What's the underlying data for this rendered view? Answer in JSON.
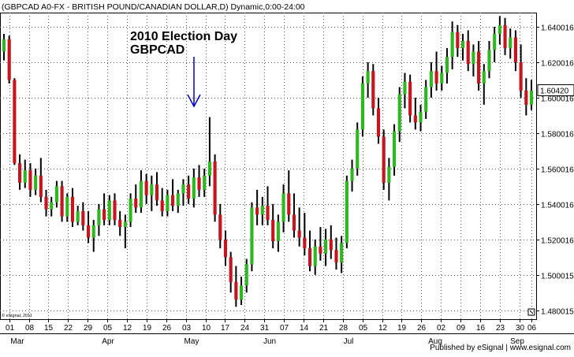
{
  "chart_data": {
    "type": "candlestick",
    "title": "(GBPCAD A0-FX - BRITISH POUND/CANADIAN DOLLAR,D) Dynamic,0:00-24:00",
    "annotation": {
      "text_line1": "2010 Election Day",
      "text_line2": "GBPCAD"
    },
    "last_price_label": "1.60420",
    "last_price": 1.6042,
    "y_range": [
      1.475,
      1.648
    ],
    "y_ticks": [
      "1.640016",
      "1.620016",
      "1.600016",
      "1.580016",
      "1.560016",
      "1.540016",
      "1.520016",
      "1.500015",
      "1.480015"
    ],
    "y_tick_values": [
      1.640016,
      1.620016,
      1.600016,
      1.580016,
      1.560016,
      1.540016,
      1.520016,
      1.500015,
      1.480015
    ],
    "x_day_labels": [
      "01",
      "08",
      "15",
      "22",
      "29",
      "05",
      "12",
      "19",
      "26",
      "03",
      "10",
      "17",
      "24",
      "31",
      "07",
      "14",
      "21",
      "28",
      "05",
      "12",
      "19",
      "26",
      "02",
      "09",
      "16",
      "23",
      "30",
      "06"
    ],
    "x_month_labels": [
      "Mar",
      "Apr",
      "May",
      "Jun",
      "Jul",
      "Aug",
      "Sep"
    ],
    "copyright": "© eSignal, 2011",
    "grid": true,
    "candles": [
      {
        "o": 1.626,
        "h": 1.636,
        "l": 1.621,
        "c": 1.633
      },
      {
        "o": 1.633,
        "h": 1.635,
        "l": 1.608,
        "c": 1.61
      },
      {
        "o": 1.61,
        "h": 1.611,
        "l": 1.562,
        "c": 1.563
      },
      {
        "o": 1.563,
        "h": 1.568,
        "l": 1.548,
        "c": 1.552
      },
      {
        "o": 1.552,
        "h": 1.565,
        "l": 1.549,
        "c": 1.559
      },
      {
        "o": 1.559,
        "h": 1.563,
        "l": 1.544,
        "c": 1.548
      },
      {
        "o": 1.548,
        "h": 1.56,
        "l": 1.545,
        "c": 1.556
      },
      {
        "o": 1.556,
        "h": 1.566,
        "l": 1.541,
        "c": 1.544
      },
      {
        "o": 1.544,
        "h": 1.548,
        "l": 1.533,
        "c": 1.537
      },
      {
        "o": 1.537,
        "h": 1.544,
        "l": 1.533,
        "c": 1.541
      },
      {
        "o": 1.541,
        "h": 1.553,
        "l": 1.538,
        "c": 1.55
      },
      {
        "o": 1.55,
        "h": 1.553,
        "l": 1.53,
        "c": 1.533
      },
      {
        "o": 1.533,
        "h": 1.546,
        "l": 1.53,
        "c": 1.544
      },
      {
        "o": 1.544,
        "h": 1.549,
        "l": 1.527,
        "c": 1.53
      },
      {
        "o": 1.53,
        "h": 1.539,
        "l": 1.528,
        "c": 1.536
      },
      {
        "o": 1.536,
        "h": 1.541,
        "l": 1.525,
        "c": 1.528
      },
      {
        "o": 1.528,
        "h": 1.536,
        "l": 1.518,
        "c": 1.521
      },
      {
        "o": 1.521,
        "h": 1.531,
        "l": 1.513,
        "c": 1.528
      },
      {
        "o": 1.528,
        "h": 1.54,
        "l": 1.522,
        "c": 1.537
      },
      {
        "o": 1.537,
        "h": 1.546,
        "l": 1.528,
        "c": 1.531
      },
      {
        "o": 1.531,
        "h": 1.545,
        "l": 1.528,
        "c": 1.542
      },
      {
        "o": 1.542,
        "h": 1.546,
        "l": 1.528,
        "c": 1.531
      },
      {
        "o": 1.531,
        "h": 1.536,
        "l": 1.522,
        "c": 1.527
      },
      {
        "o": 1.527,
        "h": 1.534,
        "l": 1.515,
        "c": 1.53
      },
      {
        "o": 1.53,
        "h": 1.546,
        "l": 1.527,
        "c": 1.543
      },
      {
        "o": 1.543,
        "h": 1.551,
        "l": 1.535,
        "c": 1.538
      },
      {
        "o": 1.538,
        "h": 1.559,
        "l": 1.535,
        "c": 1.553
      },
      {
        "o": 1.553,
        "h": 1.557,
        "l": 1.54,
        "c": 1.545
      },
      {
        "o": 1.545,
        "h": 1.556,
        "l": 1.536,
        "c": 1.551
      },
      {
        "o": 1.551,
        "h": 1.558,
        "l": 1.539,
        "c": 1.542
      },
      {
        "o": 1.542,
        "h": 1.549,
        "l": 1.533,
        "c": 1.536
      },
      {
        "o": 1.536,
        "h": 1.548,
        "l": 1.533,
        "c": 1.545
      },
      {
        "o": 1.545,
        "h": 1.554,
        "l": 1.536,
        "c": 1.539
      },
      {
        "o": 1.539,
        "h": 1.548,
        "l": 1.535,
        "c": 1.546
      },
      {
        "o": 1.546,
        "h": 1.554,
        "l": 1.539,
        "c": 1.551
      },
      {
        "o": 1.551,
        "h": 1.556,
        "l": 1.54,
        "c": 1.543
      },
      {
        "o": 1.543,
        "h": 1.56,
        "l": 1.538,
        "c": 1.555
      },
      {
        "o": 1.555,
        "h": 1.562,
        "l": 1.544,
        "c": 1.548
      },
      {
        "o": 1.548,
        "h": 1.56,
        "l": 1.544,
        "c": 1.556
      },
      {
        "o": 1.556,
        "h": 1.589,
        "l": 1.55,
        "c": 1.564
      },
      {
        "o": 1.564,
        "h": 1.568,
        "l": 1.53,
        "c": 1.534
      },
      {
        "o": 1.534,
        "h": 1.54,
        "l": 1.515,
        "c": 1.52
      },
      {
        "o": 1.52,
        "h": 1.525,
        "l": 1.505,
        "c": 1.51
      },
      {
        "o": 1.51,
        "h": 1.513,
        "l": 1.49,
        "c": 1.496
      },
      {
        "o": 1.496,
        "h": 1.505,
        "l": 1.482,
        "c": 1.486
      },
      {
        "o": 1.486,
        "h": 1.499,
        "l": 1.483,
        "c": 1.494
      },
      {
        "o": 1.494,
        "h": 1.509,
        "l": 1.49,
        "c": 1.506
      },
      {
        "o": 1.506,
        "h": 1.541,
        "l": 1.502,
        "c": 1.538
      },
      {
        "o": 1.538,
        "h": 1.548,
        "l": 1.528,
        "c": 1.534
      },
      {
        "o": 1.534,
        "h": 1.544,
        "l": 1.528,
        "c": 1.539
      },
      {
        "o": 1.539,
        "h": 1.55,
        "l": 1.528,
        "c": 1.531
      },
      {
        "o": 1.531,
        "h": 1.54,
        "l": 1.515,
        "c": 1.519
      },
      {
        "o": 1.519,
        "h": 1.534,
        "l": 1.513,
        "c": 1.53
      },
      {
        "o": 1.53,
        "h": 1.551,
        "l": 1.524,
        "c": 1.546
      },
      {
        "o": 1.546,
        "h": 1.559,
        "l": 1.53,
        "c": 1.534
      },
      {
        "o": 1.534,
        "h": 1.546,
        "l": 1.521,
        "c": 1.525
      },
      {
        "o": 1.525,
        "h": 1.538,
        "l": 1.516,
        "c": 1.521
      },
      {
        "o": 1.521,
        "h": 1.535,
        "l": 1.511,
        "c": 1.515
      },
      {
        "o": 1.515,
        "h": 1.525,
        "l": 1.502,
        "c": 1.505
      },
      {
        "o": 1.505,
        "h": 1.52,
        "l": 1.5,
        "c": 1.516
      },
      {
        "o": 1.516,
        "h": 1.527,
        "l": 1.508,
        "c": 1.512
      },
      {
        "o": 1.512,
        "h": 1.526,
        "l": 1.505,
        "c": 1.52
      },
      {
        "o": 1.52,
        "h": 1.528,
        "l": 1.509,
        "c": 1.514
      },
      {
        "o": 1.514,
        "h": 1.521,
        "l": 1.503,
        "c": 1.507
      },
      {
        "o": 1.507,
        "h": 1.522,
        "l": 1.501,
        "c": 1.518
      },
      {
        "o": 1.518,
        "h": 1.556,
        "l": 1.515,
        "c": 1.553
      },
      {
        "o": 1.553,
        "h": 1.565,
        "l": 1.547,
        "c": 1.56
      },
      {
        "o": 1.56,
        "h": 1.586,
        "l": 1.556,
        "c": 1.582
      },
      {
        "o": 1.582,
        "h": 1.612,
        "l": 1.578,
        "c": 1.608
      },
      {
        "o": 1.608,
        "h": 1.62,
        "l": 1.6,
        "c": 1.615
      },
      {
        "o": 1.615,
        "h": 1.619,
        "l": 1.59,
        "c": 1.594
      },
      {
        "o": 1.594,
        "h": 1.6,
        "l": 1.574,
        "c": 1.578
      },
      {
        "o": 1.578,
        "h": 1.582,
        "l": 1.548,
        "c": 1.552
      },
      {
        "o": 1.552,
        "h": 1.566,
        "l": 1.542,
        "c": 1.561
      },
      {
        "o": 1.561,
        "h": 1.585,
        "l": 1.556,
        "c": 1.581
      },
      {
        "o": 1.581,
        "h": 1.606,
        "l": 1.575,
        "c": 1.602
      },
      {
        "o": 1.602,
        "h": 1.614,
        "l": 1.594,
        "c": 1.609
      },
      {
        "o": 1.609,
        "h": 1.613,
        "l": 1.586,
        "c": 1.59
      },
      {
        "o": 1.59,
        "h": 1.6,
        "l": 1.582,
        "c": 1.586
      },
      {
        "o": 1.586,
        "h": 1.596,
        "l": 1.581,
        "c": 1.592
      },
      {
        "o": 1.592,
        "h": 1.61,
        "l": 1.588,
        "c": 1.606
      },
      {
        "o": 1.606,
        "h": 1.62,
        "l": 1.6,
        "c": 1.615
      },
      {
        "o": 1.615,
        "h": 1.626,
        "l": 1.604,
        "c": 1.608
      },
      {
        "o": 1.608,
        "h": 1.618,
        "l": 1.604,
        "c": 1.614
      },
      {
        "o": 1.614,
        "h": 1.628,
        "l": 1.608,
        "c": 1.623
      },
      {
        "o": 1.623,
        "h": 1.643,
        "l": 1.616,
        "c": 1.637
      },
      {
        "o": 1.637,
        "h": 1.641,
        "l": 1.623,
        "c": 1.628
      },
      {
        "o": 1.628,
        "h": 1.636,
        "l": 1.621,
        "c": 1.632
      },
      {
        "o": 1.632,
        "h": 1.638,
        "l": 1.615,
        "c": 1.619
      },
      {
        "o": 1.619,
        "h": 1.63,
        "l": 1.612,
        "c": 1.626
      },
      {
        "o": 1.626,
        "h": 1.632,
        "l": 1.604,
        "c": 1.608
      },
      {
        "o": 1.608,
        "h": 1.619,
        "l": 1.596,
        "c": 1.615
      },
      {
        "o": 1.615,
        "h": 1.632,
        "l": 1.611,
        "c": 1.627
      },
      {
        "o": 1.627,
        "h": 1.64,
        "l": 1.62,
        "c": 1.636
      },
      {
        "o": 1.636,
        "h": 1.646,
        "l": 1.63,
        "c": 1.641
      },
      {
        "o": 1.641,
        "h": 1.645,
        "l": 1.624,
        "c": 1.628
      },
      {
        "o": 1.628,
        "h": 1.639,
        "l": 1.622,
        "c": 1.634
      },
      {
        "o": 1.634,
        "h": 1.638,
        "l": 1.615,
        "c": 1.62
      },
      {
        "o": 1.62,
        "h": 1.63,
        "l": 1.6,
        "c": 1.604
      },
      {
        "o": 1.604,
        "h": 1.611,
        "l": 1.59,
        "c": 1.596
      },
      {
        "o": 1.596,
        "h": 1.61,
        "l": 1.593,
        "c": 1.604
      }
    ]
  }
}
